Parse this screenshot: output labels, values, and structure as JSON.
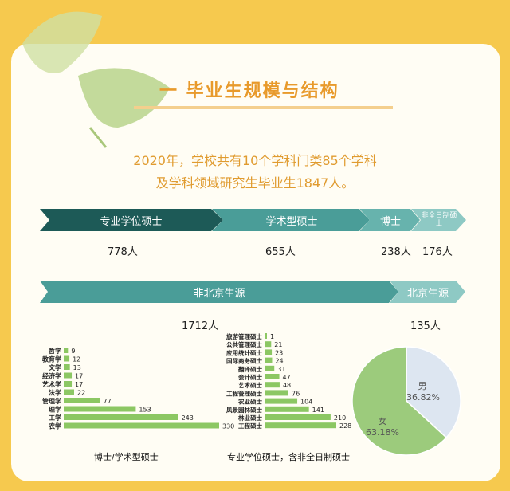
{
  "section": {
    "title": "一 毕业生规模与结构",
    "intro_line1": "2020年，学校共有10个学科门类85个学科",
    "intro_line2": "及学科领域研究生毕业生1847人。"
  },
  "degree_types": [
    {
      "label": "专业学位硕士",
      "count": "778人"
    },
    {
      "label": "学术型硕士",
      "count": "655人"
    },
    {
      "label": "博士",
      "count": "238人"
    },
    {
      "label": "非全日制硕士",
      "count": "176人"
    }
  ],
  "origin": [
    {
      "label": "非北京生源",
      "count": "1712人"
    },
    {
      "label": "北京生源",
      "count": "135人"
    }
  ],
  "captions": {
    "left": "博士/学术型硕士",
    "right": "专业学位硕士，含非全日制硕士"
  },
  "colors": {
    "teal_dark": "#1d5a57",
    "teal_mid": "#4a9d98",
    "teal_light": "#7cc3bd",
    "bar_green": "#8cc763",
    "pie_female": "#9ccb7c",
    "pie_male": "#dde6f1"
  },
  "chart_data": [
    {
      "type": "bar",
      "orientation": "horizontal",
      "categories": [
        "哲学",
        "教育学",
        "文学",
        "经济学",
        "艺术学",
        "法学",
        "管理学",
        "理学",
        "工学",
        "农学"
      ],
      "values": [
        9,
        12,
        13,
        17,
        17,
        22,
        77,
        153,
        243,
        330
      ],
      "xlabel": "博士/学术型硕士"
    },
    {
      "type": "bar",
      "orientation": "horizontal",
      "categories": [
        "旅游管理硕士",
        "公共管理硕士",
        "应用统计硕士",
        "国际商务硕士",
        "翻译硕士",
        "会计硕士",
        "艺术硕士",
        "工程管理硕士",
        "农业硕士",
        "风景园林硕士",
        "林业硕士",
        "工程硕士"
      ],
      "values": [
        1,
        21,
        23,
        24,
        31,
        47,
        48,
        76,
        104,
        141,
        210,
        228
      ],
      "xlabel": "专业学位硕士，含非全日制硕士"
    },
    {
      "type": "pie",
      "categories": [
        "男",
        "女"
      ],
      "values": [
        36.82,
        63.18
      ],
      "labels": [
        "36.82%",
        "63.18%"
      ]
    }
  ]
}
